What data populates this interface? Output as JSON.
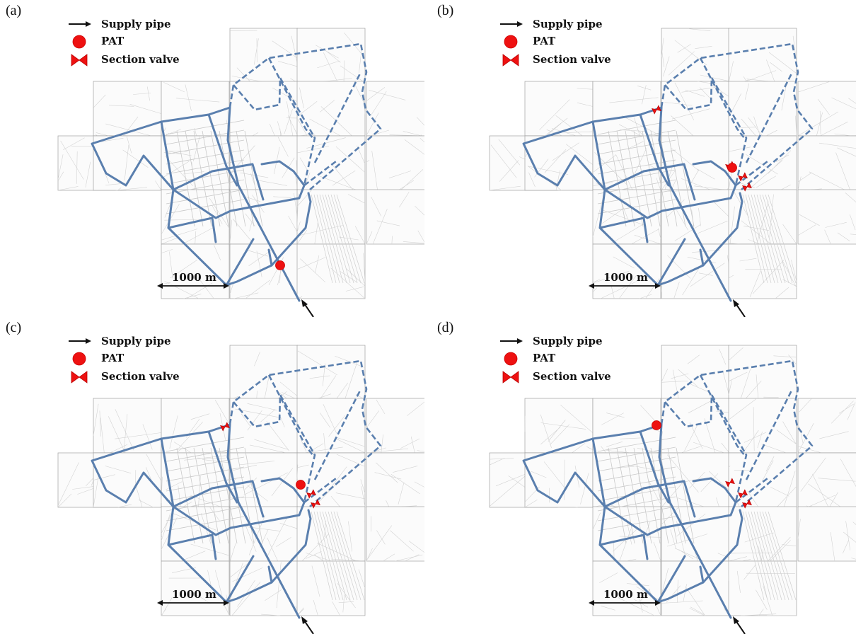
{
  "figure": {
    "panels": [
      {
        "label": "(a)",
        "pat": [
          "south"
        ],
        "valves": []
      },
      {
        "label": "(b)",
        "pat": [
          "hub"
        ],
        "valves": [
          "north",
          "hub-w",
          "hub-e",
          "hub-s"
        ]
      },
      {
        "label": "(c)",
        "pat": [
          "hub"
        ],
        "valves": [
          "north",
          "hub-e",
          "hub-s"
        ]
      },
      {
        "label": "(d)",
        "pat": [
          "north"
        ],
        "valves": [
          "hub-w",
          "hub-e",
          "hub-s"
        ]
      }
    ],
    "legend": {
      "supply_pipe": "Supply pipe",
      "pat": "PAT",
      "section_valve": "Section valve"
    },
    "scale_bar": {
      "label": "1000 m"
    },
    "colors": {
      "pipe": "#5a7fae",
      "marker": "#ee1111",
      "tile_border": "#a0a0a0",
      "street": "#d3d3d3"
    }
  }
}
